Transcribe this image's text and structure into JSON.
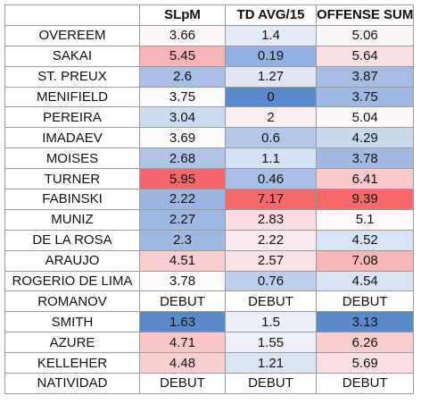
{
  "table": {
    "headers": [
      "",
      "SLpM",
      "TD AVG/15",
      "OFFENSE SUM"
    ],
    "rows": [
      {
        "name": "OVEREEM",
        "slpm": "3.66",
        "td": "1.4",
        "sum": "5.06",
        "colors": [
          "#fdf7fa",
          "#e5ebf6",
          "#fcf6f9"
        ]
      },
      {
        "name": "SAKAI",
        "slpm": "5.45",
        "td": "0.19",
        "sum": "5.64",
        "colors": [
          "#f8b4b6",
          "#93b0de",
          "#fbe0e3"
        ]
      },
      {
        "name": "ST. PREUX",
        "slpm": "2.6",
        "td": "1.27",
        "sum": "3.87",
        "colors": [
          "#a7bfe4",
          "#dfe7f4",
          "#a5bde3"
        ]
      },
      {
        "name": "MENIFIELD",
        "slpm": "3.75",
        "td": "0",
        "sum": "3.75",
        "colors": [
          "#fefbfc",
          "#5a89cc",
          "#a0b9e2"
        ]
      },
      {
        "name": "PEREIRA",
        "slpm": "3.04",
        "td": "2",
        "sum": "5.04",
        "colors": [
          "#cddbf0",
          "#fbeef0",
          "#fdf8fa"
        ]
      },
      {
        "name": "IMADAEV",
        "slpm": "3.69",
        "td": "0.6",
        "sum": "4.29",
        "colors": [
          "#fdfafb",
          "#b3c7e8",
          "#cad8ee"
        ]
      },
      {
        "name": "MOISES",
        "slpm": "2.68",
        "td": "1.1",
        "sum": "3.78",
        "colors": [
          "#afc4e6",
          "#d5e0f2",
          "#a2bae2"
        ]
      },
      {
        "name": "TURNER",
        "slpm": "5.95",
        "td": "0.46",
        "sum": "6.41",
        "colors": [
          "#f4676a",
          "#a7bfe4",
          "#f9c9cc"
        ]
      },
      {
        "name": "FABINSKI",
        "slpm": "2.22",
        "td": "7.17",
        "sum": "9.39",
        "colors": [
          "#9ab5e0",
          "#f8696b",
          "#f8696b"
        ]
      },
      {
        "name": "MUNIZ",
        "slpm": "2.27",
        "td": "2.83",
        "sum": "5.1",
        "colors": [
          "#9db8e1",
          "#f9dde0",
          "#fef9fb"
        ]
      },
      {
        "name": "DE LA ROSA",
        "slpm": "2.3",
        "td": "2.22",
        "sum": "4.52",
        "colors": [
          "#a0b9e2",
          "#fae9ec",
          "#d9e3f3"
        ]
      },
      {
        "name": "ARAUJO",
        "slpm": "4.51",
        "td": "2.57",
        "sum": "7.08",
        "colors": [
          "#f9ced1",
          "#fae3e6",
          "#f9b6b9"
        ]
      },
      {
        "name": "ROGERIO DE LIMA",
        "slpm": "3.78",
        "td": "0.76",
        "sum": "4.54",
        "colors": [
          "#fefbfc",
          "#bdcfeb",
          "#dae4f4"
        ]
      },
      {
        "name": "ROMANOV",
        "slpm": "DEBUT",
        "td": "DEBUT",
        "sum": "DEBUT",
        "colors": [
          "#ffffff",
          "#ffffff",
          "#ffffff"
        ]
      },
      {
        "name": "SMITH",
        "slpm": "1.63",
        "td": "1.5",
        "sum": "3.13",
        "colors": [
          "#5a89cc",
          "#eaeff8",
          "#5a89cc"
        ]
      },
      {
        "name": "AZURE",
        "slpm": "4.71",
        "td": "1.55",
        "sum": "6.26",
        "colors": [
          "#f9c6c9",
          "#edf2f9",
          "#facdd0"
        ]
      },
      {
        "name": "KELLEHER",
        "slpm": "4.48",
        "td": "1.21",
        "sum": "5.69",
        "colors": [
          "#facfd2",
          "#dbe4f4",
          "#fbdfe2"
        ]
      },
      {
        "name": "NATIVIDAD",
        "slpm": "DEBUT",
        "td": "DEBUT",
        "sum": "DEBUT",
        "colors": [
          "#ffffff",
          "#ffffff",
          "#ffffff"
        ]
      }
    ]
  }
}
